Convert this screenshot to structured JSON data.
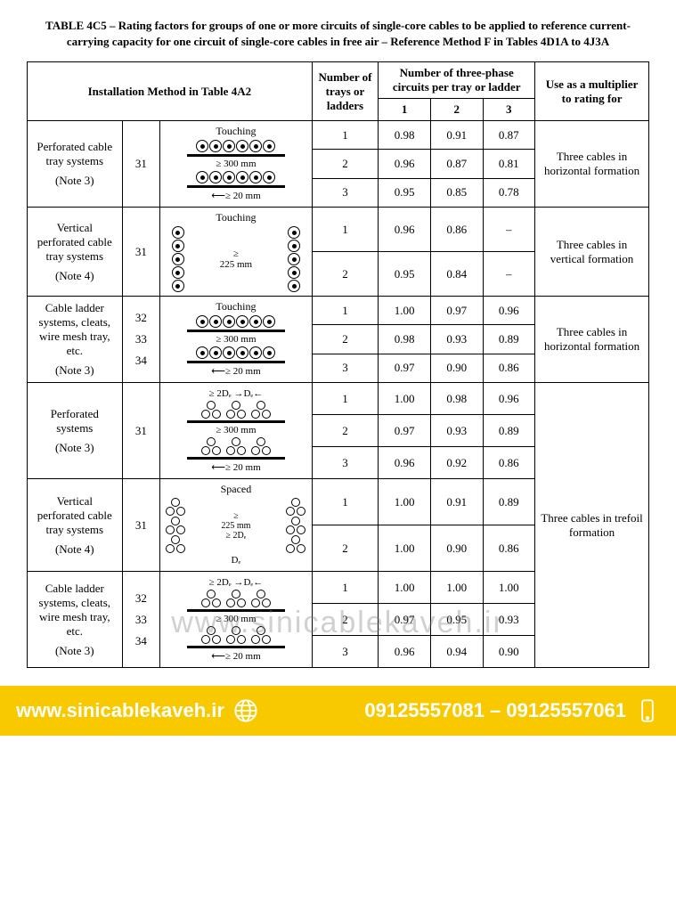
{
  "title": "TABLE 4C5 – Rating factors for groups of one or more circuits of single-core cables to be applied to reference current-carrying capacity for one circuit of single-core cables in free air – Reference Method F in Tables 4D1A to 4J3A",
  "headers": {
    "install_method": "Installation Method in Table 4A2",
    "num_trays": "Number of trays or ladders",
    "circuits_header": "Number of three-phase circuits per tray or ladder",
    "c1": "1",
    "c2": "2",
    "c3": "3",
    "use_as": "Use as a multiplier to rating for"
  },
  "diagram_labels": {
    "touching": "Touching",
    "spaced": "Spaced",
    "ge300": "≥ 300 mm",
    "ge20": "≥ 20 mm",
    "ge225": "≥ 225 mm",
    "ge2De": "≥ 2Dₑ",
    "De": "Dₑ"
  },
  "rows": [
    {
      "method": "Perforated cable tray systems",
      "note": "(Note 3)",
      "refs": [
        "31"
      ],
      "diagram": "horiz_touching",
      "trays": [
        "1",
        "2",
        "3"
      ],
      "c1": [
        "0.98",
        "0.96",
        "0.95"
      ],
      "c2": [
        "0.91",
        "0.87",
        "0.85"
      ],
      "c3": [
        "0.87",
        "0.81",
        "0.78"
      ],
      "use": "Three cables in horizontal formation"
    },
    {
      "method": "Vertical perforated cable tray systems",
      "note": "(Note 4)",
      "refs": [
        "31"
      ],
      "diagram": "vert_touching",
      "trays": [
        "1",
        "2"
      ],
      "c1": [
        "0.96",
        "0.95"
      ],
      "c2": [
        "0.86",
        "0.84"
      ],
      "c3": [
        "–",
        "–"
      ],
      "use": "Three cables in vertical formation"
    },
    {
      "method": "Cable ladder systems, cleats, wire mesh tray, etc.",
      "note": "(Note 3)",
      "refs": [
        "32",
        "33",
        "34"
      ],
      "diagram": "horiz_touching",
      "trays": [
        "1",
        "2",
        "3"
      ],
      "c1": [
        "1.00",
        "0.98",
        "0.97"
      ],
      "c2": [
        "0.97",
        "0.93",
        "0.90"
      ],
      "c3": [
        "0.96",
        "0.89",
        "0.86"
      ],
      "use": "Three cables in horizontal formation"
    },
    {
      "method": "Perforated systems",
      "note": "(Note 3)",
      "refs": [
        "31"
      ],
      "diagram": "horiz_trefoil",
      "trays": [
        "1",
        "2",
        "3"
      ],
      "c1": [
        "1.00",
        "0.97",
        "0.96"
      ],
      "c2": [
        "0.98",
        "0.93",
        "0.92"
      ],
      "c3": [
        "0.96",
        "0.89",
        "0.86"
      ],
      "use": ""
    },
    {
      "method": "Vertical perforated cable tray systems",
      "note": "(Note 4)",
      "refs": [
        "31"
      ],
      "diagram": "vert_trefoil",
      "trays": [
        "1",
        "2"
      ],
      "c1": [
        "1.00",
        "1.00"
      ],
      "c2": [
        "0.91",
        "0.90"
      ],
      "c3": [
        "0.89",
        "0.86"
      ],
      "use": "Three cables in trefoil formation"
    },
    {
      "method": "Cable ladder systems, cleats, wire mesh tray, etc.",
      "note": "(Note 3)",
      "refs": [
        "32",
        "33",
        "34"
      ],
      "diagram": "horiz_trefoil",
      "trays": [
        "1",
        "2",
        "3"
      ],
      "c1": [
        "1.00",
        "0.97",
        "0.96"
      ],
      "c2": [
        "1.00",
        "0.95",
        "0.94"
      ],
      "c3": [
        "1.00",
        "0.93",
        "0.90"
      ],
      "use": ""
    }
  ],
  "watermark": "www.sinicablekaveh.ir",
  "footer": {
    "url": "www.sinicablekaveh.ir",
    "phones": "09125557081 – 09125557061"
  },
  "colors": {
    "footer_bg": "#f9c900",
    "footer_text": "#ffffff",
    "border": "#000000",
    "watermark": "rgba(120,120,120,0.35)"
  }
}
